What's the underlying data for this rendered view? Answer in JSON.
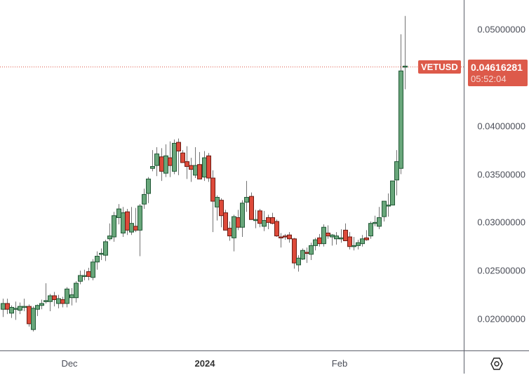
{
  "symbol": "VETUSD",
  "last_price": {
    "value": "0.04616281",
    "countdown": "05:52:04",
    "color": "#dd5a4a"
  },
  "colors": {
    "up_body": "#68a67a",
    "up_border": "#1f5634",
    "down_body": "#dd4a3a",
    "down_border": "#6b1a12",
    "wick": "#737373",
    "axis_line": "#5d606b",
    "price_line": "#dd5a4a"
  },
  "price_axis": {
    "ticks": [
      "0.05000000",
      "0.04000000",
      "0.03500000",
      "0.03000000",
      "0.02500000",
      "0.02000000"
    ]
  },
  "time_axis": {
    "labels": [
      {
        "text": "Dec",
        "x": 99,
        "bold": false
      },
      {
        "text": "2024",
        "x": 292,
        "bold": true
      },
      {
        "text": "Feb",
        "x": 484,
        "bold": false
      }
    ]
  },
  "settings_icon": "hexagon-gear-icon",
  "chart_data": {
    "type": "candlestick",
    "title": "VETUSD",
    "xlabel": "",
    "ylabel": "",
    "ylim": [
      0.0168,
      0.053
    ],
    "grid": false,
    "x_tick_labels": [
      "Dec",
      "2024",
      "Feb"
    ],
    "y_tick_labels": [
      "0.05000000",
      "0.04000000",
      "0.03500000",
      "0.03000000",
      "0.02500000",
      "0.02000000"
    ],
    "last_price": 0.04616281,
    "countdown": "05:52:04",
    "candles": [
      {
        "o": 0.021,
        "h": 0.0221,
        "l": 0.0202,
        "c": 0.0216
      },
      {
        "o": 0.0216,
        "h": 0.0221,
        "l": 0.0205,
        "c": 0.021
      },
      {
        "o": 0.0206,
        "h": 0.0214,
        "l": 0.0201,
        "c": 0.0212
      },
      {
        "o": 0.0211,
        "h": 0.0218,
        "l": 0.0199,
        "c": 0.0211
      },
      {
        "o": 0.0209,
        "h": 0.0217,
        "l": 0.0205,
        "c": 0.0213
      },
      {
        "o": 0.0213,
        "h": 0.0221,
        "l": 0.0208,
        "c": 0.0213
      },
      {
        "o": 0.0213,
        "h": 0.0215,
        "l": 0.0192,
        "c": 0.0195
      },
      {
        "o": 0.0189,
        "h": 0.0213,
        "l": 0.0187,
        "c": 0.0211
      },
      {
        "o": 0.021,
        "h": 0.0215,
        "l": 0.0203,
        "c": 0.0214
      },
      {
        "o": 0.0214,
        "h": 0.022,
        "l": 0.021,
        "c": 0.0216
      },
      {
        "o": 0.0218,
        "h": 0.0237,
        "l": 0.0216,
        "c": 0.0219
      },
      {
        "o": 0.0218,
        "h": 0.0226,
        "l": 0.0208,
        "c": 0.0224
      },
      {
        "o": 0.0224,
        "h": 0.0228,
        "l": 0.0213,
        "c": 0.022
      },
      {
        "o": 0.0216,
        "h": 0.0225,
        "l": 0.0211,
        "c": 0.0221
      },
      {
        "o": 0.022,
        "h": 0.0223,
        "l": 0.0212,
        "c": 0.0216
      },
      {
        "o": 0.0216,
        "h": 0.0233,
        "l": 0.0212,
        "c": 0.0231
      },
      {
        "o": 0.0222,
        "h": 0.0232,
        "l": 0.0214,
        "c": 0.0225
      },
      {
        "o": 0.0222,
        "h": 0.0239,
        "l": 0.0217,
        "c": 0.0237
      },
      {
        "o": 0.0239,
        "h": 0.025,
        "l": 0.0236,
        "c": 0.0245
      },
      {
        "o": 0.0244,
        "h": 0.0251,
        "l": 0.024,
        "c": 0.0245
      },
      {
        "o": 0.0249,
        "h": 0.0253,
        "l": 0.024,
        "c": 0.0244
      },
      {
        "o": 0.0243,
        "h": 0.0262,
        "l": 0.024,
        "c": 0.0259
      },
      {
        "o": 0.0259,
        "h": 0.027,
        "l": 0.0251,
        "c": 0.0265
      },
      {
        "o": 0.0267,
        "h": 0.0273,
        "l": 0.0261,
        "c": 0.0268
      },
      {
        "o": 0.0266,
        "h": 0.0282,
        "l": 0.026,
        "c": 0.028
      },
      {
        "o": 0.0283,
        "h": 0.0299,
        "l": 0.0281,
        "c": 0.0286
      },
      {
        "o": 0.0285,
        "h": 0.0311,
        "l": 0.028,
        "c": 0.0307
      },
      {
        "o": 0.0305,
        "h": 0.0319,
        "l": 0.0298,
        "c": 0.0314
      },
      {
        "o": 0.0289,
        "h": 0.0316,
        "l": 0.0285,
        "c": 0.031
      },
      {
        "o": 0.0311,
        "h": 0.0314,
        "l": 0.0287,
        "c": 0.0292
      },
      {
        "o": 0.029,
        "h": 0.0316,
        "l": 0.0287,
        "c": 0.0299
      },
      {
        "o": 0.0296,
        "h": 0.0315,
        "l": 0.029,
        "c": 0.0292
      },
      {
        "o": 0.0292,
        "h": 0.0319,
        "l": 0.0265,
        "c": 0.0317
      },
      {
        "o": 0.0319,
        "h": 0.0335,
        "l": 0.0314,
        "c": 0.0329
      },
      {
        "o": 0.033,
        "h": 0.0347,
        "l": 0.032,
        "c": 0.0345
      },
      {
        "o": 0.0356,
        "h": 0.0375,
        "l": 0.0353,
        "c": 0.0358
      },
      {
        "o": 0.0359,
        "h": 0.0378,
        "l": 0.0348,
        "c": 0.0371
      },
      {
        "o": 0.0368,
        "h": 0.0377,
        "l": 0.0343,
        "c": 0.0353
      },
      {
        "o": 0.0351,
        "h": 0.0381,
        "l": 0.0347,
        "c": 0.0369
      },
      {
        "o": 0.0367,
        "h": 0.0384,
        "l": 0.0347,
        "c": 0.0359
      },
      {
        "o": 0.0353,
        "h": 0.0386,
        "l": 0.035,
        "c": 0.0382
      },
      {
        "o": 0.0383,
        "h": 0.0387,
        "l": 0.0349,
        "c": 0.0374
      },
      {
        "o": 0.0372,
        "h": 0.0375,
        "l": 0.0364,
        "c": 0.0362
      },
      {
        "o": 0.0363,
        "h": 0.0379,
        "l": 0.0345,
        "c": 0.0358
      },
      {
        "o": 0.0359,
        "h": 0.0367,
        "l": 0.0342,
        "c": 0.0355
      },
      {
        "o": 0.0349,
        "h": 0.0378,
        "l": 0.0346,
        "c": 0.0359
      },
      {
        "o": 0.036,
        "h": 0.0373,
        "l": 0.0345,
        "c": 0.0345
      },
      {
        "o": 0.0347,
        "h": 0.0374,
        "l": 0.0343,
        "c": 0.0367
      },
      {
        "o": 0.0369,
        "h": 0.0372,
        "l": 0.0342,
        "c": 0.0346
      },
      {
        "o": 0.0346,
        "h": 0.0354,
        "l": 0.029,
        "c": 0.0322
      },
      {
        "o": 0.0316,
        "h": 0.0328,
        "l": 0.0302,
        "c": 0.0326
      },
      {
        "o": 0.0323,
        "h": 0.0325,
        "l": 0.0295,
        "c": 0.0307
      },
      {
        "o": 0.031,
        "h": 0.0313,
        "l": 0.0297,
        "c": 0.0292
      },
      {
        "o": 0.0294,
        "h": 0.0301,
        "l": 0.0281,
        "c": 0.0286
      },
      {
        "o": 0.0284,
        "h": 0.0308,
        "l": 0.027,
        "c": 0.0306
      },
      {
        "o": 0.0305,
        "h": 0.0313,
        "l": 0.0292,
        "c": 0.0295
      },
      {
        "o": 0.0295,
        "h": 0.0323,
        "l": 0.0285,
        "c": 0.032
      },
      {
        "o": 0.0321,
        "h": 0.0343,
        "l": 0.0311,
        "c": 0.0326
      },
      {
        "o": 0.0327,
        "h": 0.0331,
        "l": 0.0303,
        "c": 0.0303
      },
      {
        "o": 0.0303,
        "h": 0.0313,
        "l": 0.0294,
        "c": 0.0303
      },
      {
        "o": 0.0312,
        "h": 0.0314,
        "l": 0.0295,
        "c": 0.0299
      },
      {
        "o": 0.0296,
        "h": 0.0312,
        "l": 0.0291,
        "c": 0.0302
      },
      {
        "o": 0.0305,
        "h": 0.0308,
        "l": 0.0293,
        "c": 0.03
      },
      {
        "o": 0.0305,
        "h": 0.031,
        "l": 0.0298,
        "c": 0.0299
      },
      {
        "o": 0.0301,
        "h": 0.0303,
        "l": 0.0285,
        "c": 0.0286
      },
      {
        "o": 0.0285,
        "h": 0.0289,
        "l": 0.0274,
        "c": 0.0284
      },
      {
        "o": 0.0286,
        "h": 0.0288,
        "l": 0.0282,
        "c": 0.0285
      },
      {
        "o": 0.0287,
        "h": 0.029,
        "l": 0.0279,
        "c": 0.0283
      },
      {
        "o": 0.0283,
        "h": 0.0284,
        "l": 0.0252,
        "c": 0.0258
      },
      {
        "o": 0.0256,
        "h": 0.0266,
        "l": 0.0249,
        "c": 0.0263
      },
      {
        "o": 0.0262,
        "h": 0.0273,
        "l": 0.0261,
        "c": 0.0271
      },
      {
        "o": 0.0269,
        "h": 0.0274,
        "l": 0.0258,
        "c": 0.0268
      },
      {
        "o": 0.0267,
        "h": 0.0279,
        "l": 0.0261,
        "c": 0.0276
      },
      {
        "o": 0.0276,
        "h": 0.0284,
        "l": 0.0271,
        "c": 0.0282
      },
      {
        "o": 0.0284,
        "h": 0.0288,
        "l": 0.0275,
        "c": 0.0278
      },
      {
        "o": 0.0278,
        "h": 0.0298,
        "l": 0.0275,
        "c": 0.0295
      },
      {
        "o": 0.0289,
        "h": 0.0297,
        "l": 0.0283,
        "c": 0.0286
      },
      {
        "o": 0.0285,
        "h": 0.0288,
        "l": 0.0276,
        "c": 0.0287
      },
      {
        "o": 0.0283,
        "h": 0.029,
        "l": 0.0277,
        "c": 0.0286
      },
      {
        "o": 0.0283,
        "h": 0.0293,
        "l": 0.0279,
        "c": 0.0284
      },
      {
        "o": 0.0292,
        "h": 0.0299,
        "l": 0.0283,
        "c": 0.0281
      },
      {
        "o": 0.0285,
        "h": 0.029,
        "l": 0.0272,
        "c": 0.0275
      },
      {
        "o": 0.0275,
        "h": 0.0285,
        "l": 0.0271,
        "c": 0.0276
      },
      {
        "o": 0.0276,
        "h": 0.0282,
        "l": 0.0272,
        "c": 0.0279
      },
      {
        "o": 0.0278,
        "h": 0.0287,
        "l": 0.0275,
        "c": 0.0283
      },
      {
        "o": 0.0284,
        "h": 0.0292,
        "l": 0.0281,
        "c": 0.0282
      },
      {
        "o": 0.0286,
        "h": 0.0301,
        "l": 0.0283,
        "c": 0.0299
      },
      {
        "o": 0.03,
        "h": 0.0307,
        "l": 0.0296,
        "c": 0.03
      },
      {
        "o": 0.0296,
        "h": 0.0316,
        "l": 0.0293,
        "c": 0.0305
      },
      {
        "o": 0.0306,
        "h": 0.0321,
        "l": 0.0301,
        "c": 0.0322
      },
      {
        "o": 0.0318,
        "h": 0.033,
        "l": 0.0306,
        "c": 0.0318
      },
      {
        "o": 0.0318,
        "h": 0.0327,
        "l": 0.032,
        "c": 0.0343
      },
      {
        "o": 0.0344,
        "h": 0.0375,
        "l": 0.0328,
        "c": 0.0363
      },
      {
        "o": 0.0356,
        "h": 0.0495,
        "l": 0.035,
        "c": 0.0457
      },
      {
        "o": 0.0462,
        "h": 0.0514,
        "l": 0.0438,
        "c": 0.0462
      }
    ]
  }
}
